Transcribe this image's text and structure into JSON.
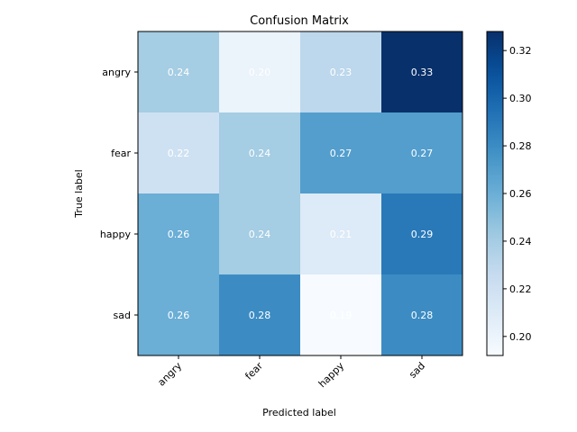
{
  "chart_data": {
    "type": "heatmap",
    "title": "Confusion Matrix",
    "xlabel": "Predicted label",
    "ylabel": "True label",
    "x_categories": [
      "angry",
      "fear",
      "happy",
      "sad"
    ],
    "y_categories": [
      "angry",
      "fear",
      "happy",
      "sad"
    ],
    "values": [
      [
        0.24,
        0.2,
        0.23,
        0.33
      ],
      [
        0.22,
        0.24,
        0.27,
        0.27
      ],
      [
        0.26,
        0.24,
        0.21,
        0.29
      ],
      [
        0.26,
        0.28,
        0.19,
        0.28
      ]
    ],
    "cell_labels": [
      [
        "0.24",
        "0.20",
        "0.23",
        "0.33"
      ],
      [
        "0.22",
        "0.24",
        "0.27",
        "0.27"
      ],
      [
        "0.26",
        "0.24",
        "0.21",
        "0.29"
      ],
      [
        "0.26",
        "0.28",
        "0.19",
        "0.28"
      ]
    ],
    "colormap": "Blues",
    "colormap_stops": [
      "#f7fbff",
      "#deebf7",
      "#c6dbef",
      "#9ecae1",
      "#6baed6",
      "#4292c6",
      "#2171b5",
      "#08519c",
      "#08306b"
    ],
    "colorbar": {
      "range": [
        0.192,
        0.328
      ],
      "ticks": [
        0.2,
        0.22,
        0.24,
        0.26,
        0.28,
        0.3,
        0.32
      ],
      "tick_labels": [
        "0.20",
        "0.22",
        "0.24",
        "0.26",
        "0.28",
        "0.30",
        "0.32"
      ]
    },
    "x_tick_rotation_deg": 45,
    "grid": false
  }
}
